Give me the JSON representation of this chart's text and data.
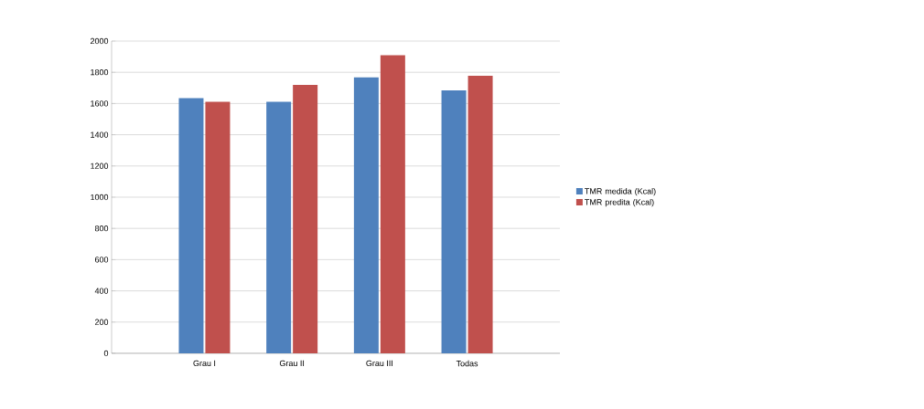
{
  "chart_data": {
    "type": "bar",
    "categories": [
      "Grau I",
      "Grau II",
      "Grau III",
      "Todas"
    ],
    "series": [
      {
        "name": "TMR medida (Kcal)",
        "color": "#4f81bd",
        "values": [
          1635,
          1611,
          1768,
          1684
        ]
      },
      {
        "name": "TMR predita (Kcal)",
        "color": "#c0504d",
        "values": [
          1611,
          1719,
          1909,
          1778
        ]
      }
    ],
    "ylim": [
      0,
      2000
    ],
    "yticks": [
      0,
      200,
      400,
      600,
      800,
      1000,
      1200,
      1400,
      1600,
      1800,
      2000
    ],
    "grid": "y",
    "legend": "right"
  }
}
